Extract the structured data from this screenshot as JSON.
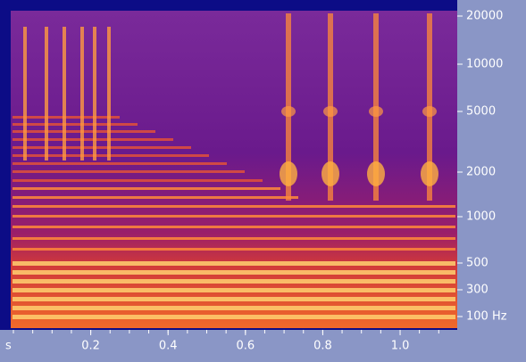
{
  "chart_data": {
    "type": "spectrogram",
    "x_label": "s",
    "xlim": [
      0,
      1.15
    ],
    "xticks": [
      0.2,
      0.4,
      0.6,
      0.8,
      {
        "value": 1,
        "label": "1.0"
      }
    ],
    "ylim": [
      100,
      20000
    ],
    "yticks": [
      {
        "value": 100,
        "label": "100 Hz"
      },
      300,
      500,
      1000,
      2000,
      5000,
      10000,
      20000
    ]
  }
}
